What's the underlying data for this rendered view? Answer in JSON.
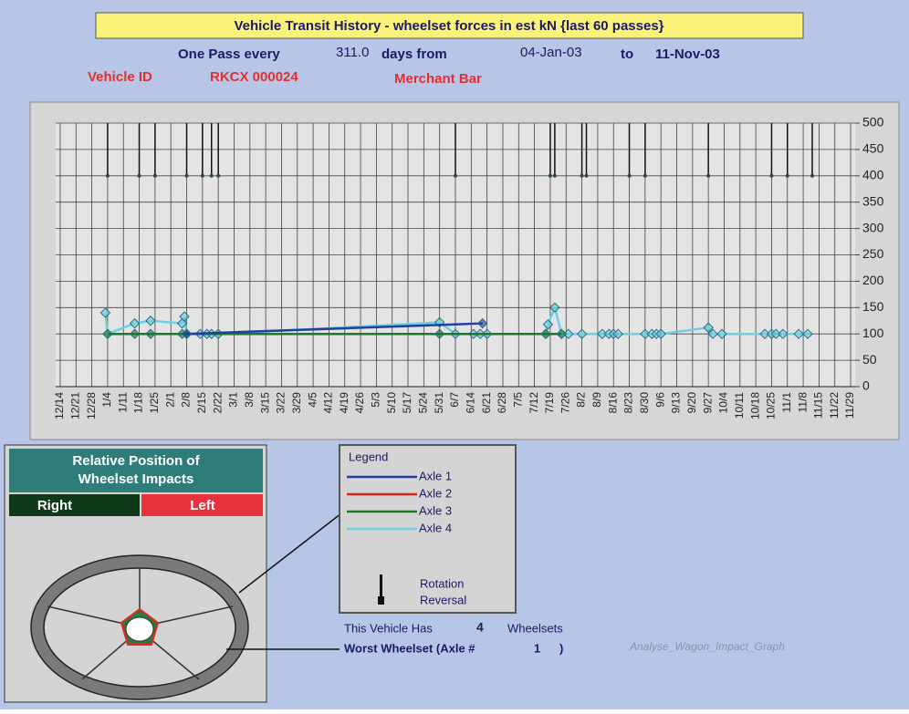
{
  "header": {
    "title": "Vehicle Transit History - wheelset forces in est kN {last 60 passes}",
    "pass_prefix": "One Pass every",
    "pass_days": "311.0",
    "pass_mid": "days from",
    "date_from": "04-Jan-03",
    "date_to_prefix": "to",
    "date_to": "11-Nov-03",
    "vehicle_label": "Vehicle ID",
    "vehicle_id": "RKCX 000024",
    "vehicle_type": "Merchant Bar"
  },
  "chart_data": {
    "type": "line",
    "xlim": [
      -2,
      352
    ],
    "ylim": [
      0,
      500
    ],
    "yticks": [
      0,
      50,
      100,
      150,
      200,
      250,
      300,
      350,
      400,
      450,
      500
    ],
    "grid": true,
    "xticks": [
      {
        "value": 0,
        "label": "12/14"
      },
      {
        "value": 7,
        "label": "12/21"
      },
      {
        "value": 14,
        "label": "12/28"
      },
      {
        "value": 21,
        "label": "1/4"
      },
      {
        "value": 28,
        "label": "1/11"
      },
      {
        "value": 35,
        "label": "1/18"
      },
      {
        "value": 42,
        "label": "1/25"
      },
      {
        "value": 49,
        "label": "2/1"
      },
      {
        "value": 56,
        "label": "2/8"
      },
      {
        "value": 63,
        "label": "2/15"
      },
      {
        "value": 70,
        "label": "2/22"
      },
      {
        "value": 77,
        "label": "3/1"
      },
      {
        "value": 84,
        "label": "3/8"
      },
      {
        "value": 91,
        "label": "3/15"
      },
      {
        "value": 98,
        "label": "3/22"
      },
      {
        "value": 105,
        "label": "3/29"
      },
      {
        "value": 112,
        "label": "4/5"
      },
      {
        "value": 119,
        "label": "4/12"
      },
      {
        "value": 126,
        "label": "4/19"
      },
      {
        "value": 133,
        "label": "4/26"
      },
      {
        "value": 140,
        "label": "5/3"
      },
      {
        "value": 147,
        "label": "5/10"
      },
      {
        "value": 154,
        "label": "5/17"
      },
      {
        "value": 161,
        "label": "5/24"
      },
      {
        "value": 168,
        "label": "5/31"
      },
      {
        "value": 175,
        "label": "6/7"
      },
      {
        "value": 182,
        "label": "6/14"
      },
      {
        "value": 189,
        "label": "6/21"
      },
      {
        "value": 196,
        "label": "6/28"
      },
      {
        "value": 203,
        "label": "7/5"
      },
      {
        "value": 210,
        "label": "7/12"
      },
      {
        "value": 217,
        "label": "7/19"
      },
      {
        "value": 224,
        "label": "7/26"
      },
      {
        "value": 231,
        "label": "8/2"
      },
      {
        "value": 238,
        "label": "8/9"
      },
      {
        "value": 245,
        "label": "8/16"
      },
      {
        "value": 252,
        "label": "8/23"
      },
      {
        "value": 259,
        "label": "8/30"
      },
      {
        "value": 266,
        "label": "9/6"
      },
      {
        "value": 273,
        "label": "9/13"
      },
      {
        "value": 280,
        "label": "9/20"
      },
      {
        "value": 287,
        "label": "9/27"
      },
      {
        "value": 294,
        "label": "10/4"
      },
      {
        "value": 301,
        "label": "10/11"
      },
      {
        "value": 308,
        "label": "10/18"
      },
      {
        "value": 315,
        "label": "10/25"
      },
      {
        "value": 322,
        "label": "11/1"
      },
      {
        "value": 329,
        "label": "11/8"
      },
      {
        "value": 336,
        "label": "11/15"
      },
      {
        "value": 343,
        "label": "11/22"
      },
      {
        "value": 350,
        "label": "11/29"
      }
    ],
    "series": [
      {
        "name": "Axle 4",
        "color": "#6cd0e0",
        "x": [
          20,
          21,
          33,
          40,
          54,
          55,
          56,
          62,
          65,
          67,
          70,
          168,
          175,
          183,
          186,
          189,
          215,
          216,
          219,
          222,
          225,
          231,
          240,
          243,
          245,
          247,
          259,
          262,
          264,
          266,
          287,
          289,
          293,
          312,
          315,
          317,
          320,
          327,
          331
        ],
        "values": [
          140,
          100,
          120,
          125,
          120,
          133,
          100,
          100,
          100,
          100,
          100,
          122,
          100,
          100,
          100,
          100,
          100,
          118,
          150,
          100,
          100,
          100,
          100,
          100,
          100,
          100,
          100,
          100,
          100,
          100,
          112,
          100,
          100,
          100,
          100,
          100,
          100,
          100,
          100
        ]
      },
      {
        "name": "Axle 3",
        "color": "#1a7a2a",
        "x": [
          21,
          33,
          40,
          54,
          56,
          168,
          215,
          222
        ],
        "values": [
          100,
          100,
          100,
          100,
          100,
          100,
          100,
          100
        ]
      },
      {
        "name": "Axle 2",
        "color": "#e02020",
        "x": [],
        "values": []
      },
      {
        "name": "Axle 1",
        "color": "#1f3f9f",
        "x": [
          56,
          187
        ],
        "values": [
          100,
          120
        ]
      }
    ],
    "reversals": {
      "x": [
        21,
        35,
        42,
        56,
        63,
        67,
        70,
        175,
        217,
        219,
        231,
        233,
        252,
        259,
        287,
        315,
        322,
        333
      ],
      "values": [
        400,
        400,
        400,
        400,
        400,
        400,
        400,
        400,
        400,
        400,
        400,
        400,
        400,
        400,
        400,
        400,
        400,
        400
      ]
    }
  },
  "wheel_panel": {
    "title_line1": "Relative Position of",
    "title_line2": "Wheelset Impacts",
    "right": "Right",
    "left": "Left"
  },
  "legend": {
    "title": "Legend",
    "reversal_line1": "Rotation",
    "reversal_line2": "Reversal"
  },
  "footer": {
    "has_prefix": "This Vehicle Has",
    "wheelset_count": "4",
    "has_suffix": "Wheelsets",
    "worst_prefix": "Worst Wheelset  (Axle #",
    "worst_axle": "1",
    "worst_suffix": ")",
    "sheet_name": "Analyse_Wagon_Impact_Graph"
  }
}
